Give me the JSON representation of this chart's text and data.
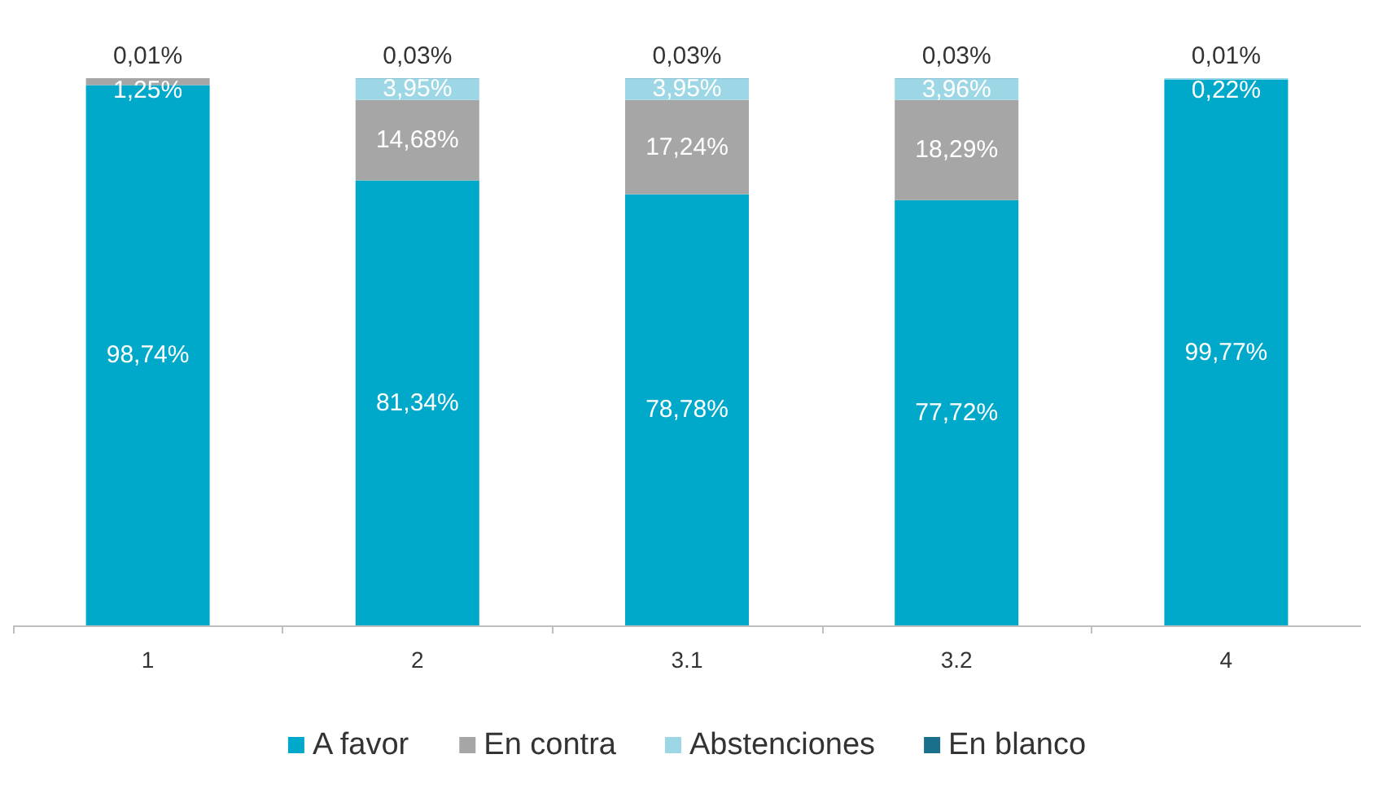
{
  "chart_data": {
    "type": "bar",
    "stacked": true,
    "categories": [
      "1",
      "2",
      "3.1",
      "3.2",
      "4"
    ],
    "ylim": [
      0,
      100
    ],
    "tick_labels": "x",
    "grid": false,
    "legend": "bottom",
    "series": [
      {
        "name": "A favor",
        "color": "#00a9c9",
        "values": [
          98.74,
          81.34,
          78.78,
          77.72,
          99.77
        ],
        "value_labels": [
          "98,74%",
          "81,34%",
          "78,78%",
          "77,72%",
          "99,77%"
        ]
      },
      {
        "name": "En contra",
        "color": "#a6a6a6",
        "values": [
          1.25,
          14.68,
          17.24,
          18.29,
          null
        ],
        "value_labels": [
          "1,25%",
          "14,68%",
          "17,24%",
          "18,29%",
          null
        ]
      },
      {
        "name": "Abstenciones",
        "color": "#9dd7e6",
        "values": [
          null,
          3.95,
          3.95,
          3.96,
          0.22
        ],
        "value_labels": [
          null,
          "3,95%",
          "3,95%",
          "3,96%",
          "0,22%"
        ]
      },
      {
        "name": "En blanco",
        "color": "#1a6f8a",
        "values": [
          0.01,
          0.03,
          0.03,
          0.03,
          0.01
        ],
        "value_labels": [
          "0,01%",
          "0,03%",
          "0,03%",
          "0,03%",
          "0,01%"
        ]
      }
    ]
  }
}
